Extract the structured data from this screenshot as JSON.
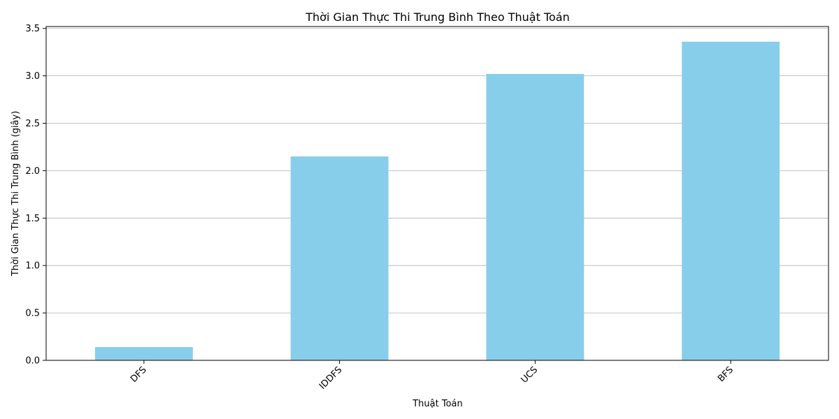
{
  "chart_data": {
    "type": "bar",
    "title": "Thời Gian Thực Thi Trung Bình Theo Thuật Toán",
    "xlabel": "Thuật Toán",
    "ylabel": "Thời Gian Thực Thi Trung Bình (giây)",
    "categories": [
      "DFS",
      "IDDFS",
      "UCS",
      "BFS"
    ],
    "values": [
      0.14,
      2.15,
      3.02,
      3.36
    ],
    "ylim": [
      0,
      3.52
    ],
    "yticks": [
      "0.0",
      "0.5",
      "1.0",
      "1.5",
      "2.0",
      "2.5",
      "3.0",
      "3.5"
    ],
    "grid": "y",
    "bar_color": "#87CEEB"
  }
}
